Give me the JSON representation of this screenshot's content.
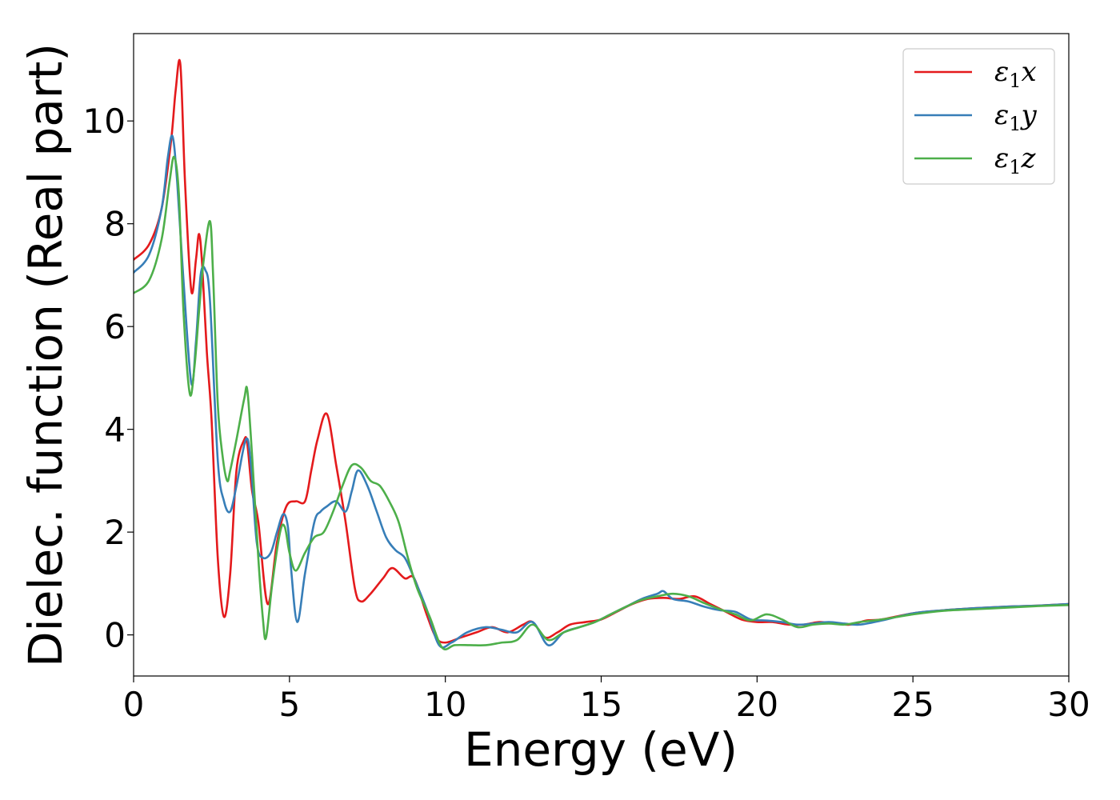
{
  "chart_data": {
    "type": "line",
    "title": "",
    "xlabel": "Energy (eV)",
    "ylabel": "Dielec. function (Real part)",
    "xlim": [
      0,
      30
    ],
    "ylim": [
      -0.8,
      11.7
    ],
    "xticks": [
      0,
      5,
      10,
      15,
      20,
      25,
      30
    ],
    "yticks": [
      0,
      2,
      4,
      6,
      8,
      10
    ],
    "grid": false,
    "legend_position": "top-right",
    "series": [
      {
        "name": "ε₁x",
        "legend_symbol": "ε",
        "legend_subscript": "1",
        "legend_suffix": "x",
        "color": "#e41a1c",
        "x": [
          0,
          0.5,
          0.9,
          1.2,
          1.35,
          1.5,
          1.65,
          1.85,
          2.0,
          2.1,
          2.2,
          2.35,
          2.5,
          2.7,
          2.9,
          3.1,
          3.3,
          3.55,
          3.65,
          3.8,
          4.0,
          4.3,
          4.6,
          4.9,
          5.2,
          5.5,
          5.7,
          5.9,
          6.2,
          6.5,
          6.8,
          7.1,
          7.3,
          7.6,
          8.0,
          8.3,
          8.7,
          9.0,
          9.4,
          9.7,
          10.0,
          10.5,
          11.0,
          11.5,
          12.0,
          12.5,
          12.8,
          13.2,
          13.6,
          14.0,
          14.5,
          15.0,
          15.5,
          16.0,
          16.5,
          17.0,
          17.5,
          18.0,
          18.5,
          19.0,
          19.5,
          20.0,
          20.5,
          21.0,
          21.5,
          22.0,
          22.5,
          23.0,
          23.5,
          24.0,
          25.0,
          26.0,
          27.0,
          28.0,
          29.0,
          30.0
        ],
        "y": [
          7.3,
          7.6,
          8.3,
          9.6,
          10.6,
          11.1,
          8.8,
          6.7,
          7.3,
          7.8,
          7.2,
          5.5,
          4.2,
          1.5,
          0.35,
          1.2,
          3.2,
          3.8,
          3.7,
          2.8,
          2.2,
          0.6,
          1.8,
          2.5,
          2.6,
          2.6,
          3.2,
          3.8,
          4.3,
          3.3,
          2.2,
          0.9,
          0.65,
          0.8,
          1.1,
          1.3,
          1.1,
          1.1,
          0.4,
          -0.05,
          -0.15,
          -0.05,
          0.05,
          0.15,
          0.05,
          0.2,
          0.25,
          -0.05,
          0.05,
          0.2,
          0.25,
          0.3,
          0.45,
          0.6,
          0.7,
          0.72,
          0.7,
          0.75,
          0.6,
          0.45,
          0.3,
          0.25,
          0.25,
          0.2,
          0.2,
          0.25,
          0.22,
          0.2,
          0.28,
          0.3,
          0.42,
          0.48,
          0.52,
          0.55,
          0.57,
          0.6
        ]
      },
      {
        "name": "ε₁y",
        "legend_symbol": "ε",
        "legend_subscript": "1",
        "legend_suffix": "y",
        "color": "#377eb8",
        "x": [
          0,
          0.5,
          0.9,
          1.1,
          1.25,
          1.4,
          1.6,
          1.85,
          2.0,
          2.15,
          2.3,
          2.45,
          2.7,
          2.9,
          3.1,
          3.3,
          3.6,
          3.75,
          3.95,
          4.15,
          4.4,
          4.6,
          4.8,
          4.95,
          5.05,
          5.25,
          5.5,
          5.8,
          6.0,
          6.2,
          6.5,
          6.8,
          7.0,
          7.2,
          7.5,
          7.8,
          8.1,
          8.4,
          8.7,
          9.0,
          9.4,
          9.8,
          10.2,
          10.7,
          11.3,
          11.8,
          12.3,
          12.8,
          13.3,
          13.8,
          14.3,
          14.8,
          15.3,
          15.8,
          16.3,
          16.8,
          17.0,
          17.3,
          17.8,
          18.3,
          18.8,
          19.3,
          19.8,
          20.3,
          20.8,
          21.3,
          21.8,
          22.3,
          22.8,
          23.3,
          24.0,
          25.0,
          26.0,
          27.0,
          28.0,
          29.0,
          30.0
        ],
        "y": [
          7.05,
          7.4,
          8.3,
          9.3,
          9.7,
          8.8,
          6.9,
          4.9,
          5.7,
          7.0,
          7.1,
          6.5,
          3.4,
          2.6,
          2.4,
          2.9,
          3.8,
          3.4,
          1.8,
          1.5,
          1.6,
          2.0,
          2.35,
          2.1,
          1.3,
          0.25,
          1.2,
          2.2,
          2.4,
          2.5,
          2.6,
          2.4,
          2.8,
          3.2,
          2.9,
          2.4,
          1.9,
          1.65,
          1.5,
          1.1,
          0.5,
          -0.2,
          -0.15,
          0.05,
          0.15,
          0.1,
          0.05,
          0.25,
          -0.2,
          0.05,
          0.15,
          0.25,
          0.4,
          0.55,
          0.7,
          0.8,
          0.85,
          0.7,
          0.65,
          0.55,
          0.48,
          0.45,
          0.3,
          0.28,
          0.25,
          0.2,
          0.22,
          0.25,
          0.22,
          0.2,
          0.28,
          0.42,
          0.48,
          0.52,
          0.55,
          0.57,
          0.6
        ]
      },
      {
        "name": "ε₁z",
        "legend_symbol": "ε",
        "legend_subscript": "1",
        "legend_suffix": "z",
        "color": "#4daf4a",
        "x": [
          0,
          0.5,
          0.9,
          1.15,
          1.3,
          1.45,
          1.6,
          1.8,
          1.95,
          2.1,
          2.25,
          2.45,
          2.55,
          2.7,
          2.85,
          3.0,
          3.1,
          3.3,
          3.55,
          3.65,
          3.8,
          4.0,
          4.15,
          4.25,
          4.45,
          4.7,
          4.85,
          5.0,
          5.2,
          5.5,
          5.8,
          6.1,
          6.4,
          6.7,
          7.0,
          7.3,
          7.6,
          7.9,
          8.2,
          8.5,
          8.8,
          9.1,
          9.5,
          9.9,
          10.3,
          10.8,
          11.3,
          11.8,
          12.3,
          12.8,
          13.3,
          13.8,
          14.3,
          14.8,
          15.3,
          15.8,
          16.3,
          16.8,
          17.3,
          17.8,
          18.3,
          18.8,
          19.3,
          19.8,
          20.3,
          20.8,
          21.3,
          21.8,
          22.3,
          22.8,
          23.3,
          24.0,
          25.0,
          26.0,
          27.0,
          28.0,
          29.0,
          30.0
        ],
        "y": [
          6.65,
          6.9,
          7.7,
          8.8,
          9.3,
          8.6,
          6.3,
          4.7,
          5.2,
          6.3,
          7.3,
          8.05,
          7.0,
          4.5,
          3.5,
          3.0,
          3.2,
          3.8,
          4.6,
          4.75,
          3.5,
          1.5,
          0.3,
          -0.05,
          1.0,
          2.0,
          2.1,
          1.6,
          1.25,
          1.6,
          1.9,
          2.0,
          2.4,
          2.9,
          3.3,
          3.25,
          3.0,
          2.9,
          2.6,
          2.2,
          1.5,
          0.9,
          0.35,
          -0.25,
          -0.2,
          -0.2,
          -0.2,
          -0.15,
          -0.1,
          0.2,
          -0.1,
          0.05,
          0.15,
          0.25,
          0.4,
          0.55,
          0.68,
          0.75,
          0.8,
          0.75,
          0.62,
          0.5,
          0.4,
          0.28,
          0.4,
          0.3,
          0.15,
          0.2,
          0.22,
          0.2,
          0.25,
          0.3,
          0.4,
          0.47,
          0.5,
          0.53,
          0.56,
          0.58
        ]
      }
    ]
  }
}
